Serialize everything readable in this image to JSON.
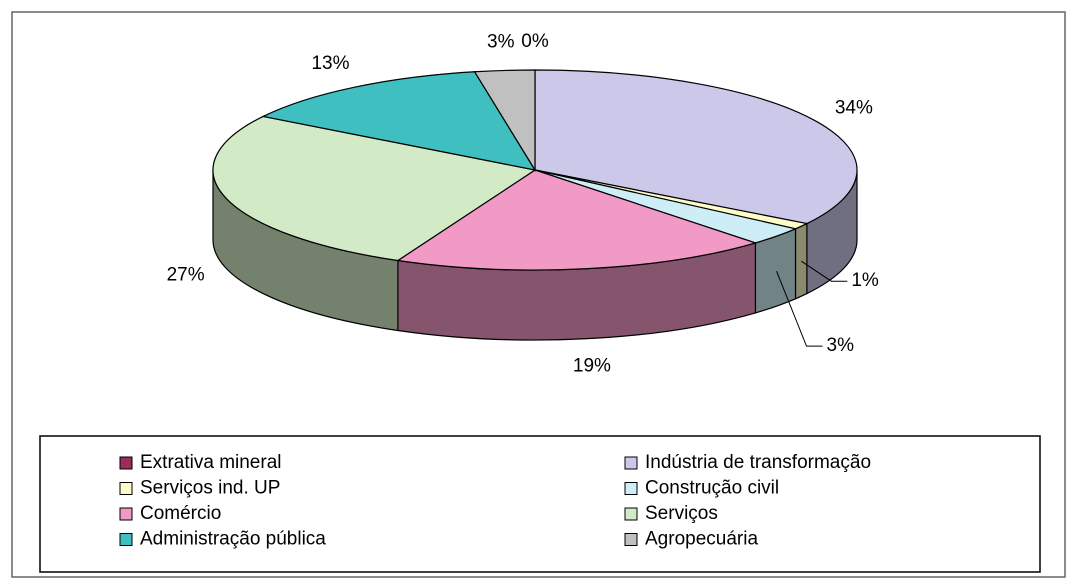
{
  "chart_data": {
    "type": "pie3d",
    "categories": [
      "Extrativa mineral",
      "Indústria de transformação",
      "Serviços ind. UP",
      "Construção civil",
      "Comércio",
      "Serviços",
      "Administração pública",
      "Agropecuária"
    ],
    "values": [
      0,
      34,
      1,
      3,
      19,
      27,
      13,
      3
    ],
    "value_labels": [
      "0%",
      "34%",
      "1%",
      "3%",
      "19%",
      "27%",
      "13%",
      "3%"
    ],
    "colors": [
      "#9b2d5c",
      "#cbc8ea",
      "#fdfbc8",
      "#cdeef6",
      "#f29ac6",
      "#d3eac6",
      "#3fbfc0",
      "#c0c0c0"
    ],
    "legend": "bottom"
  }
}
